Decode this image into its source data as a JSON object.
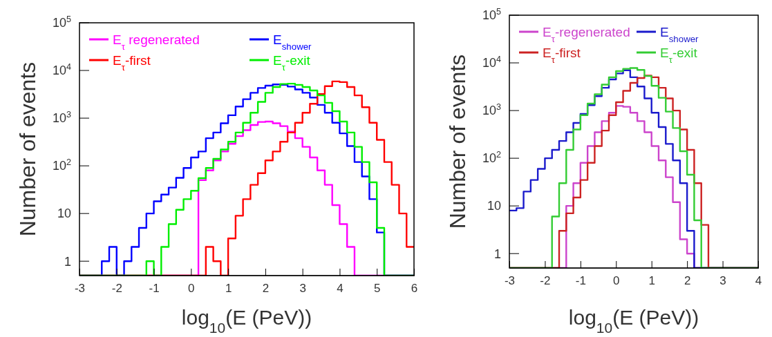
{
  "chart_data": [
    {
      "type": "histogram",
      "xlabel": "log$_{10}$(E (PeV))",
      "ylabel": "Number of events",
      "log": "y",
      "legend": "top",
      "grid": false,
      "xlim": [
        -3,
        6
      ],
      "xticks": [
        -3,
        -2,
        -1,
        0,
        1,
        2,
        3,
        4,
        5,
        6
      ],
      "ylim": [
        0.5,
        100000
      ],
      "yticks": [
        {
          "value": 1,
          "label": "1"
        },
        {
          "value": 10,
          "label": "10"
        },
        {
          "value": 100,
          "label": "10$^{2}$"
        },
        {
          "value": 1000,
          "label": "10$^{3}$"
        },
        {
          "value": 10000,
          "label": "10$^{4}$"
        },
        {
          "value": 100000,
          "label": "10$^{5}$"
        }
      ],
      "bins": [
        -3,
        -2.8,
        -2.6,
        -2.4,
        -2.2,
        -2,
        -1.8,
        -1.6,
        -1.4,
        -1.2,
        -1,
        -0.8,
        -0.6,
        -0.4,
        -0.2,
        0,
        0.2,
        0.4,
        0.6,
        0.8,
        1,
        1.2,
        1.4,
        1.6,
        1.8,
        2,
        2.2,
        2.4,
        2.6,
        2.8,
        3,
        3.2,
        3.4,
        3.6,
        3.8,
        4,
        4.2,
        4.4,
        4.6,
        4.8,
        5,
        5.2,
        5.4,
        5.6,
        5.8,
        6
      ],
      "series": [
        {
          "name": "E$_{τ}$ regenerated",
          "color": "#ff00ff",
          "values": [
            null,
            null,
            null,
            null,
            null,
            null,
            null,
            null,
            null,
            null,
            null,
            null,
            null,
            null,
            null,
            null,
            50,
            80,
            130,
            200,
            290,
            420,
            560,
            720,
            830,
            850,
            780,
            680,
            520,
            380,
            250,
            150,
            80,
            40,
            15,
            6,
            2,
            null,
            null,
            null,
            null,
            null,
            null,
            null,
            null
          ]
        },
        {
          "name": "E$_{shower}$",
          "color": "#0000ff",
          "values": [
            null,
            null,
            null,
            1,
            2,
            null,
            1,
            2,
            5,
            10,
            18,
            25,
            35,
            56,
            90,
            150,
            200,
            380,
            500,
            780,
            1150,
            1750,
            2500,
            3400,
            4300,
            4800,
            5100,
            5000,
            4600,
            4000,
            3400,
            2700,
            1900,
            1300,
            800,
            480,
            260,
            120,
            60,
            20,
            4,
            null,
            null,
            null,
            null
          ]
        },
        {
          "name": "E$_{τ}$-first",
          "color": "#ff0000",
          "values": [
            null,
            null,
            null,
            null,
            null,
            null,
            null,
            null,
            null,
            null,
            null,
            null,
            null,
            null,
            null,
            null,
            null,
            2,
            1,
            null,
            3,
            9,
            20,
            40,
            70,
            130,
            200,
            320,
            500,
            800,
            1300,
            2000,
            3200,
            4700,
            5900,
            5700,
            4500,
            3000,
            1700,
            800,
            350,
            120,
            40,
            10,
            2
          ]
        },
        {
          "name": "E$_{τ}$-exit",
          "color": "#00ee00",
          "values": [
            null,
            null,
            null,
            null,
            null,
            null,
            null,
            null,
            null,
            1,
            null,
            2,
            6,
            12,
            20,
            30,
            55,
            90,
            140,
            220,
            320,
            500,
            800,
            1300,
            2200,
            3400,
            4500,
            5200,
            5300,
            5000,
            4500,
            3800,
            3000,
            2100,
            1400,
            850,
            500,
            250,
            120,
            45,
            5,
            null,
            null,
            null,
            null
          ]
        }
      ]
    },
    {
      "type": "histogram",
      "xlabel": "log$_{10}$(E (PeV))",
      "ylabel": "Number of events",
      "log": "y",
      "legend": "top",
      "grid": false,
      "xlim": [
        -3,
        4
      ],
      "xticks": [
        -3,
        -2,
        -1,
        0,
        1,
        2,
        3,
        4
      ],
      "ylim": [
        0.5,
        100000
      ],
      "yticks": [
        {
          "value": 1,
          "label": "1"
        },
        {
          "value": 10,
          "label": "10"
        },
        {
          "value": 100,
          "label": "10$^{2}$"
        },
        {
          "value": 1000,
          "label": "10$^{3}$"
        },
        {
          "value": 10000,
          "label": "10$^{4}$"
        },
        {
          "value": 100000,
          "label": "10$^{5}$"
        }
      ],
      "bins": [
        -3,
        -2.8,
        -2.6,
        -2.4,
        -2.2,
        -2,
        -1.8,
        -1.6,
        -1.4,
        -1.2,
        -1,
        -0.8,
        -0.6,
        -0.4,
        -0.2,
        0,
        0.2,
        0.4,
        0.6,
        0.8,
        1,
        1.2,
        1.4,
        1.6,
        1.8,
        2,
        2.2,
        2.4,
        2.6,
        2.8,
        3,
        3.2,
        3.4,
        3.6,
        3.8,
        4
      ],
      "series": [
        {
          "name": "E$_{τ}$-regenerated",
          "color": "#cc44cc",
          "values": [
            null,
            null,
            null,
            null,
            null,
            null,
            null,
            null,
            10,
            30,
            80,
            180,
            350,
            600,
            900,
            1250,
            1200,
            900,
            600,
            350,
            180,
            90,
            40,
            12,
            2,
            1,
            null,
            null,
            null,
            null,
            null,
            null,
            null,
            null,
            null
          ]
        },
        {
          "name": "E$_{shower}$",
          "color": "#1a1acc",
          "values": [
            8,
            9,
            20,
            35,
            60,
            100,
            150,
            230,
            350,
            550,
            850,
            1300,
            2000,
            3000,
            4500,
            6000,
            7000,
            5000,
            3200,
            1800,
            900,
            450,
            200,
            90,
            30,
            3,
            null,
            null,
            null,
            null,
            null,
            null,
            null,
            null,
            null
          ]
        },
        {
          "name": "E$_{τ}$-first",
          "color": "#cc2222",
          "values": [
            null,
            null,
            null,
            null,
            null,
            null,
            null,
            3,
            7,
            15,
            35,
            80,
            180,
            380,
            800,
            1500,
            2600,
            3800,
            4800,
            5400,
            5000,
            3000,
            1800,
            1000,
            400,
            150,
            30,
            4,
            null,
            null,
            null,
            null,
            null,
            null,
            null
          ]
        },
        {
          "name": "E$_{τ}$-exit",
          "color": "#33cc33",
          "values": [
            null,
            null,
            null,
            null,
            null,
            null,
            6,
            30,
            150,
            400,
            800,
            1400,
            2200,
            3500,
            5000,
            6700,
            7500,
            7800,
            7100,
            5300,
            3300,
            1850,
            950,
            430,
            140,
            45,
            5,
            null,
            null,
            null,
            null,
            null,
            null,
            null,
            null
          ]
        }
      ]
    }
  ]
}
